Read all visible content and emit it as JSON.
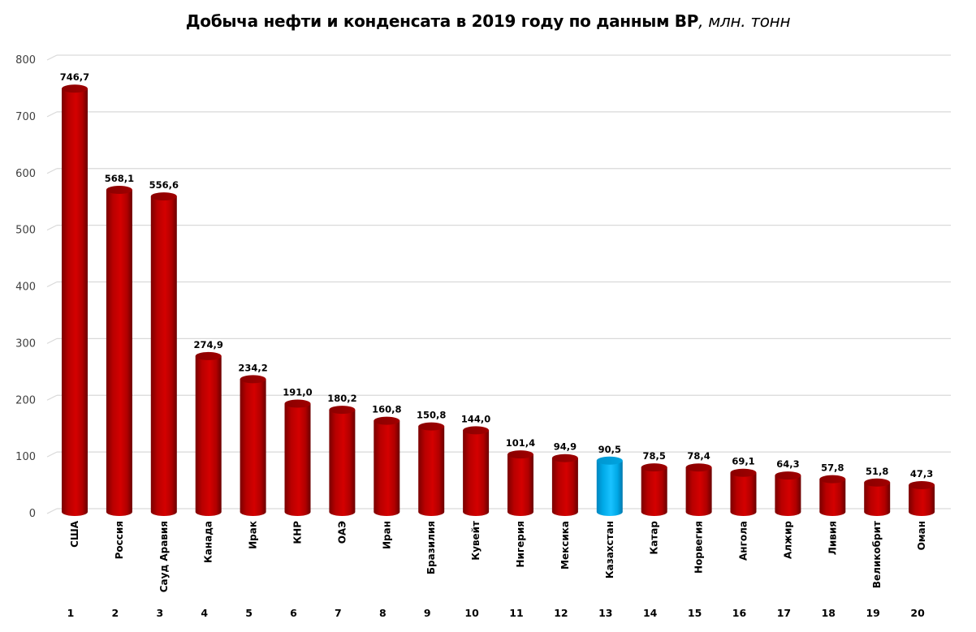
{
  "chart_data": {
    "type": "bar",
    "style": "3d-cylinder",
    "title": "Добыча нефти и конденсата в 2019 году по данным BP",
    "title_unit": ", млн. тонн",
    "xlabel": "",
    "ylabel": "",
    "ylim": [
      0,
      800
    ],
    "yticks": [
      0,
      100,
      200,
      300,
      400,
      500,
      600,
      700,
      800
    ],
    "grid": true,
    "legend": "none",
    "categories": [
      "США",
      "Россия",
      "Сауд Аравия",
      "Канада",
      "Ирак",
      "КНР",
      "ОАЭ",
      "Иран",
      "Бразилия",
      "Кувейт",
      "Нигерия",
      "Мексика",
      "Казахстан",
      "Катар",
      "Норвегия",
      "Ангола",
      "Алжир",
      "Ливия",
      "Великобрит",
      "Оман"
    ],
    "ranks": [
      "1",
      "2",
      "3",
      "4",
      "5",
      "6",
      "7",
      "8",
      "9",
      "10",
      "11",
      "12",
      "13",
      "14",
      "15",
      "16",
      "17",
      "18",
      "19",
      "20"
    ],
    "values": [
      746.7,
      568.1,
      556.6,
      274.9,
      234.2,
      191.0,
      180.2,
      160.8,
      150.8,
      144.0,
      101.4,
      94.9,
      90.5,
      78.5,
      78.4,
      69.1,
      64.3,
      57.8,
      51.8,
      47.3
    ],
    "value_labels": [
      "746,7",
      "568,1",
      "556,6",
      "274,9",
      "234,2",
      "191,0",
      "180,2",
      "160,8",
      "150,8",
      "144,0",
      "101,4",
      "94,9",
      "90,5",
      "78,5",
      "78,4",
      "69,1",
      "64,3",
      "57,8",
      "51,8",
      "47,3"
    ],
    "highlight_index": 12,
    "colors": {
      "bar": "#c00000",
      "highlight": "#00b0f0",
      "grid": "#d9d9d9"
    }
  }
}
